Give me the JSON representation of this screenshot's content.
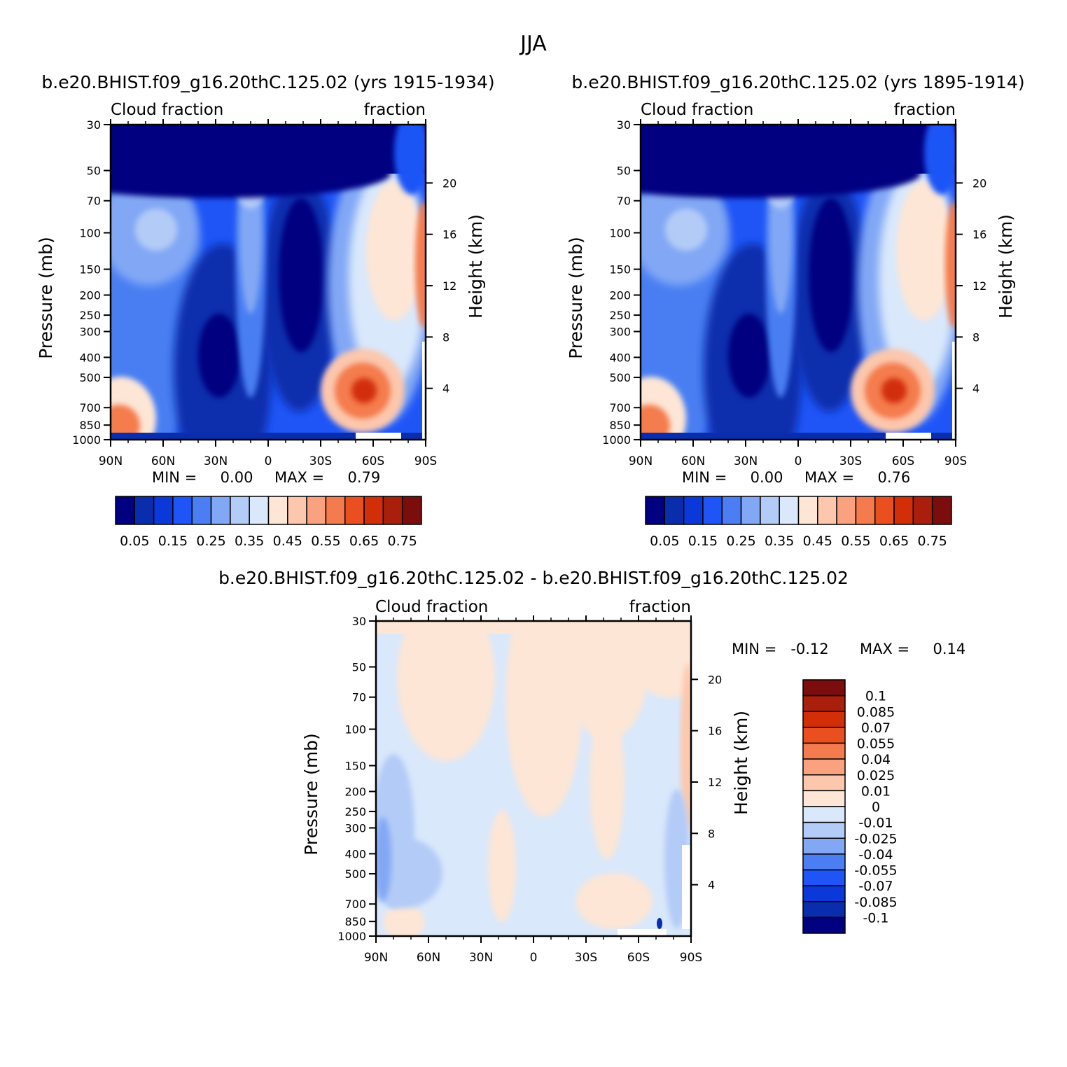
{
  "title": "JJA",
  "colors": {
    "abs_palette": [
      "#000080",
      "#0a2dad",
      "#0b39d9",
      "#1f55f6",
      "#4a7ef2",
      "#82a8f5",
      "#b3cbf7",
      "#d9e8fb",
      "#fde6d6",
      "#fcc7ad",
      "#faa27f",
      "#f47b4d",
      "#e94f1f",
      "#d22f08",
      "#aa1f0c",
      "#7b0d0d"
    ],
    "diff_palette": [
      "#000080",
      "#0a2dad",
      "#0b39d9",
      "#1f55f6",
      "#4a7ef2",
      "#82a8f5",
      "#b3cbf7",
      "#d9e8fb",
      "#fde6d6",
      "#fcc7ad",
      "#faa27f",
      "#f47b4d",
      "#e94f1f",
      "#d22f08",
      "#aa1f0c",
      "#7b0d0d"
    ]
  },
  "chart_data": [
    {
      "type": "heatmap",
      "subtitle": "b.e20.BHIST.f09_g16.20thC.125.02 (yrs 1915-1934)",
      "left_label": "Cloud fraction",
      "right_label": "fraction",
      "xlabel": "",
      "ylabel": "Pressure (mb)",
      "right_axis_label": "Height (km)",
      "x_ticks": [
        "90N",
        "60N",
        "30N",
        "0",
        "30S",
        "60S",
        "90S"
      ],
      "y_ticks": [
        "30",
        "50",
        "70",
        "100",
        "150",
        "200",
        "250",
        "300",
        "400",
        "500",
        "700",
        "850",
        "1000"
      ],
      "height_ticks": [
        "20",
        "16",
        "12",
        "8",
        "4"
      ],
      "ylim": [
        1000,
        30
      ],
      "min_text": "MIN =     0.00",
      "max_text": "MAX =     0.79",
      "min": 0.0,
      "max": 0.79,
      "colorbar_labels": [
        "0.05",
        "0.15",
        "0.25",
        "0.35",
        "0.45",
        "0.55",
        "0.65",
        "0.75"
      ]
    },
    {
      "type": "heatmap",
      "subtitle": "b.e20.BHIST.f09_g16.20thC.125.02 (yrs 1895-1914)",
      "left_label": "Cloud fraction",
      "right_label": "fraction",
      "xlabel": "",
      "ylabel": "Pressure (mb)",
      "right_axis_label": "Height (km)",
      "x_ticks": [
        "90N",
        "60N",
        "30N",
        "0",
        "30S",
        "60S",
        "90S"
      ],
      "y_ticks": [
        "30",
        "50",
        "70",
        "100",
        "150",
        "200",
        "250",
        "300",
        "400",
        "500",
        "700",
        "850",
        "1000"
      ],
      "height_ticks": [
        "20",
        "16",
        "12",
        "8",
        "4"
      ],
      "ylim": [
        1000,
        30
      ],
      "min_text": "MIN =     0.00",
      "max_text": "MAX =     0.76",
      "min": 0.0,
      "max": 0.76,
      "colorbar_labels": [
        "0.05",
        "0.15",
        "0.25",
        "0.35",
        "0.45",
        "0.55",
        "0.65",
        "0.75"
      ]
    },
    {
      "type": "heatmap",
      "subtitle": "b.e20.BHIST.f09_g16.20thC.125.02 - b.e20.BHIST.f09_g16.20thC.125.02",
      "left_label": "Cloud fraction",
      "right_label": "fraction",
      "xlabel": "",
      "ylabel": "Pressure (mb)",
      "right_axis_label": "Height (km)",
      "x_ticks": [
        "90N",
        "60N",
        "30N",
        "0",
        "30S",
        "60S",
        "90S"
      ],
      "y_ticks": [
        "30",
        "50",
        "70",
        "100",
        "150",
        "200",
        "250",
        "300",
        "400",
        "500",
        "700",
        "850",
        "1000"
      ],
      "height_ticks": [
        "20",
        "16",
        "12",
        "8",
        "4"
      ],
      "ylim": [
        1000,
        30
      ],
      "min_text": "MIN =   -0.12",
      "max_text": "MAX =     0.14",
      "min": -0.12,
      "max": 0.14,
      "colorbar_labels": [
        "0.1",
        "0.085",
        "0.07",
        "0.055",
        "0.04",
        "0.025",
        "0.01",
        "0",
        "-0.01",
        "-0.025",
        "-0.04",
        "-0.055",
        "-0.07",
        "-0.085",
        "-0.1"
      ]
    }
  ]
}
